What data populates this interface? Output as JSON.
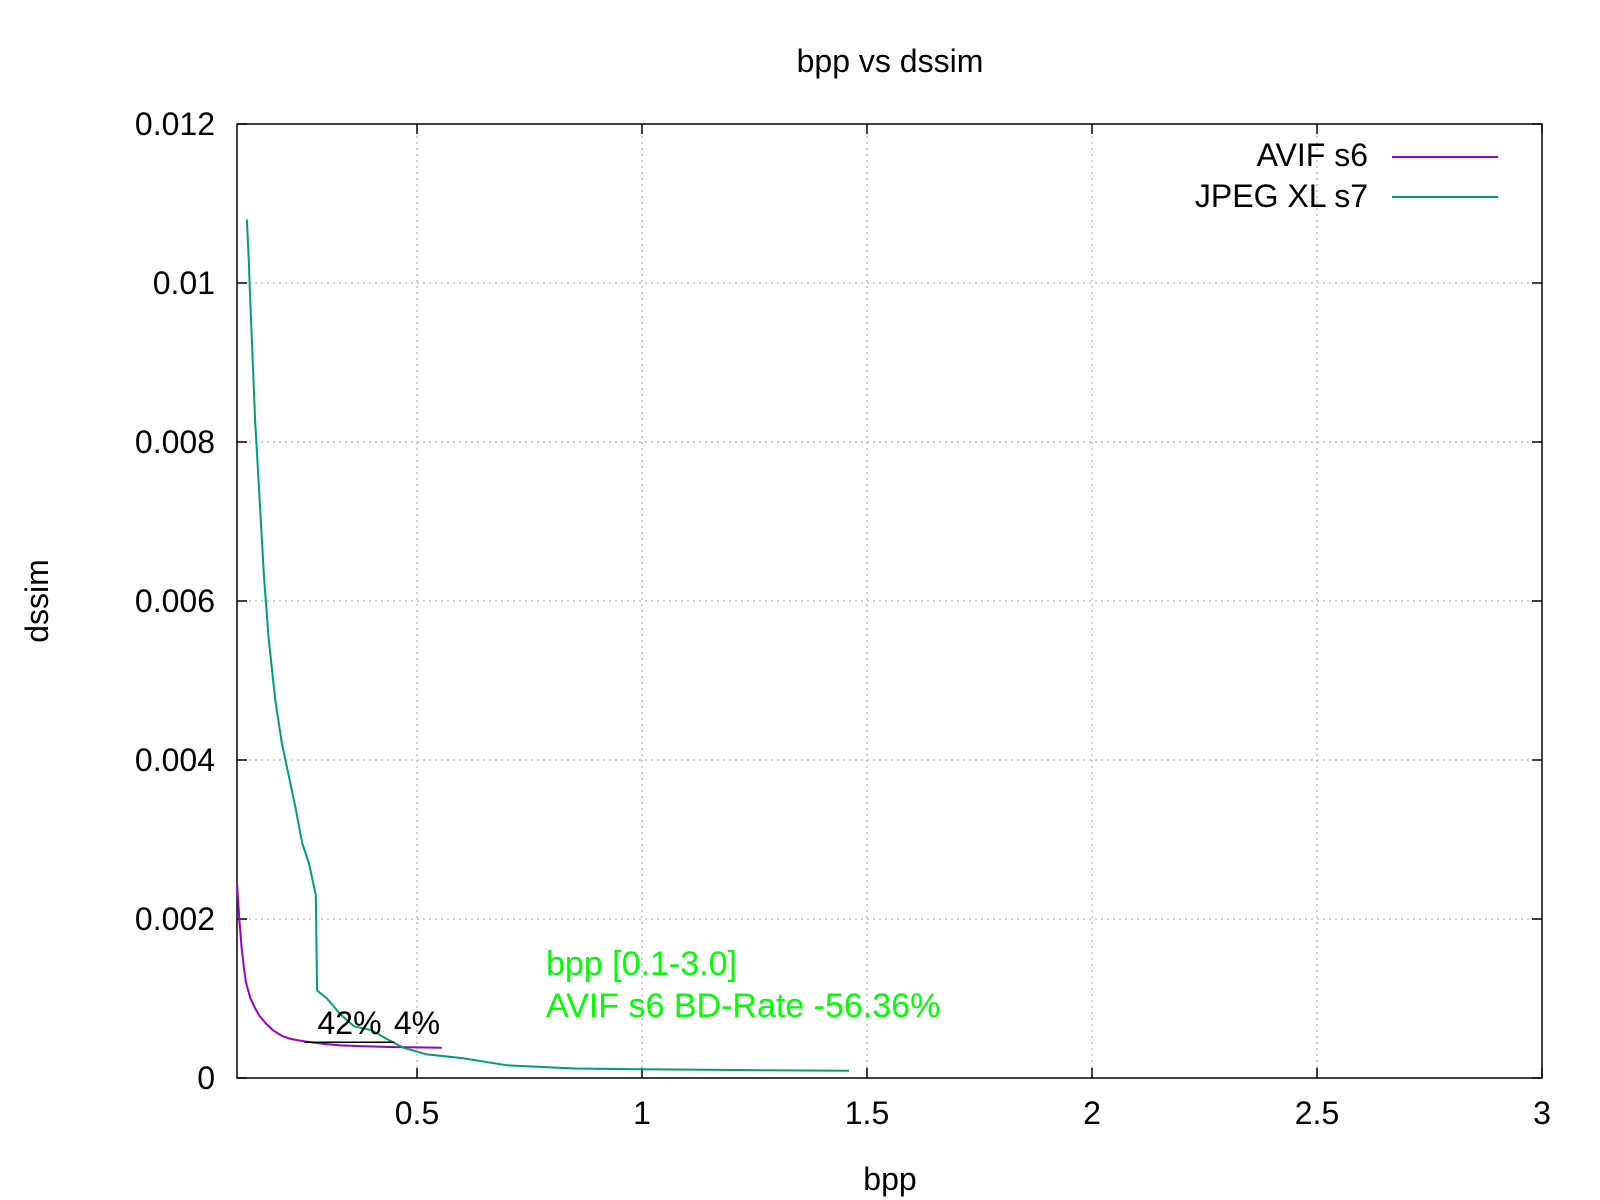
{
  "chart_data": {
    "type": "line",
    "title": "bpp vs dssim",
    "xlabel": "bpp",
    "ylabel": "dssim",
    "xlim": [
      0.1,
      3.0
    ],
    "ylim": [
      0,
      0.012
    ],
    "x_ticks": [
      "0.5",
      "1",
      "1.5",
      "2",
      "2.5",
      "3"
    ],
    "y_ticks": [
      "0",
      "0.002",
      "0.004",
      "0.006",
      "0.008",
      "0.01",
      "0.012"
    ],
    "grid": true,
    "legend_position": "top-right",
    "series": [
      {
        "name": "AVIF s6",
        "color": "#9400d3",
        "points": [
          [
            0.1,
            0.00245
          ],
          [
            0.105,
            0.002
          ],
          [
            0.11,
            0.00165
          ],
          [
            0.115,
            0.0014
          ],
          [
            0.12,
            0.0012
          ],
          [
            0.13,
            0.001
          ],
          [
            0.14,
            0.00088
          ],
          [
            0.15,
            0.00078
          ],
          [
            0.165,
            0.00068
          ],
          [
            0.18,
            0.0006
          ],
          [
            0.2,
            0.00053
          ],
          [
            0.22,
            0.00049
          ],
          [
            0.25,
            0.00046
          ],
          [
            0.29,
            0.00043
          ],
          [
            0.33,
            0.00041
          ],
          [
            0.38,
            0.0004
          ],
          [
            0.44,
            0.00039
          ],
          [
            0.5,
            0.000385
          ],
          [
            0.555,
            0.00038
          ]
        ]
      },
      {
        "name": "JPEG XL s7",
        "color": "#009e73",
        "points": [
          [
            0.122,
            0.0108
          ],
          [
            0.126,
            0.0103
          ],
          [
            0.13,
            0.0097
          ],
          [
            0.135,
            0.009
          ],
          [
            0.14,
            0.0083
          ],
          [
            0.15,
            0.0073
          ],
          [
            0.16,
            0.0063
          ],
          [
            0.17,
            0.00555
          ],
          [
            0.185,
            0.00475
          ],
          [
            0.2,
            0.0042
          ],
          [
            0.215,
            0.0038
          ],
          [
            0.23,
            0.0034
          ],
          [
            0.245,
            0.00295
          ],
          [
            0.26,
            0.0027
          ],
          [
            0.275,
            0.0023
          ],
          [
            0.278,
            0.0011
          ],
          [
            0.3,
            0.001
          ],
          [
            0.33,
            0.0008
          ],
          [
            0.36,
            0.00065
          ],
          [
            0.4,
            0.0006
          ],
          [
            0.43,
            0.0005
          ],
          [
            0.47,
            0.00038
          ],
          [
            0.52,
            0.0003
          ],
          [
            0.6,
            0.00025
          ],
          [
            0.7,
            0.00016
          ],
          [
            0.85,
            0.00012
          ],
          [
            1.0,
            0.00011
          ],
          [
            1.2,
            0.0001
          ],
          [
            1.46,
            9e-05
          ]
        ]
      }
    ],
    "annotations": [
      {
        "text": "bpp [0.1-3.0]",
        "color": "#00ff00"
      },
      {
        "text": "AVIF s6 BD-Rate -56.36%",
        "color": "#00ff00"
      }
    ],
    "markers": [
      {
        "text": "42%",
        "x": 0.35,
        "y": 0.00045
      },
      {
        "text": "4%",
        "x": 0.5,
        "y": 0.00045
      }
    ]
  }
}
